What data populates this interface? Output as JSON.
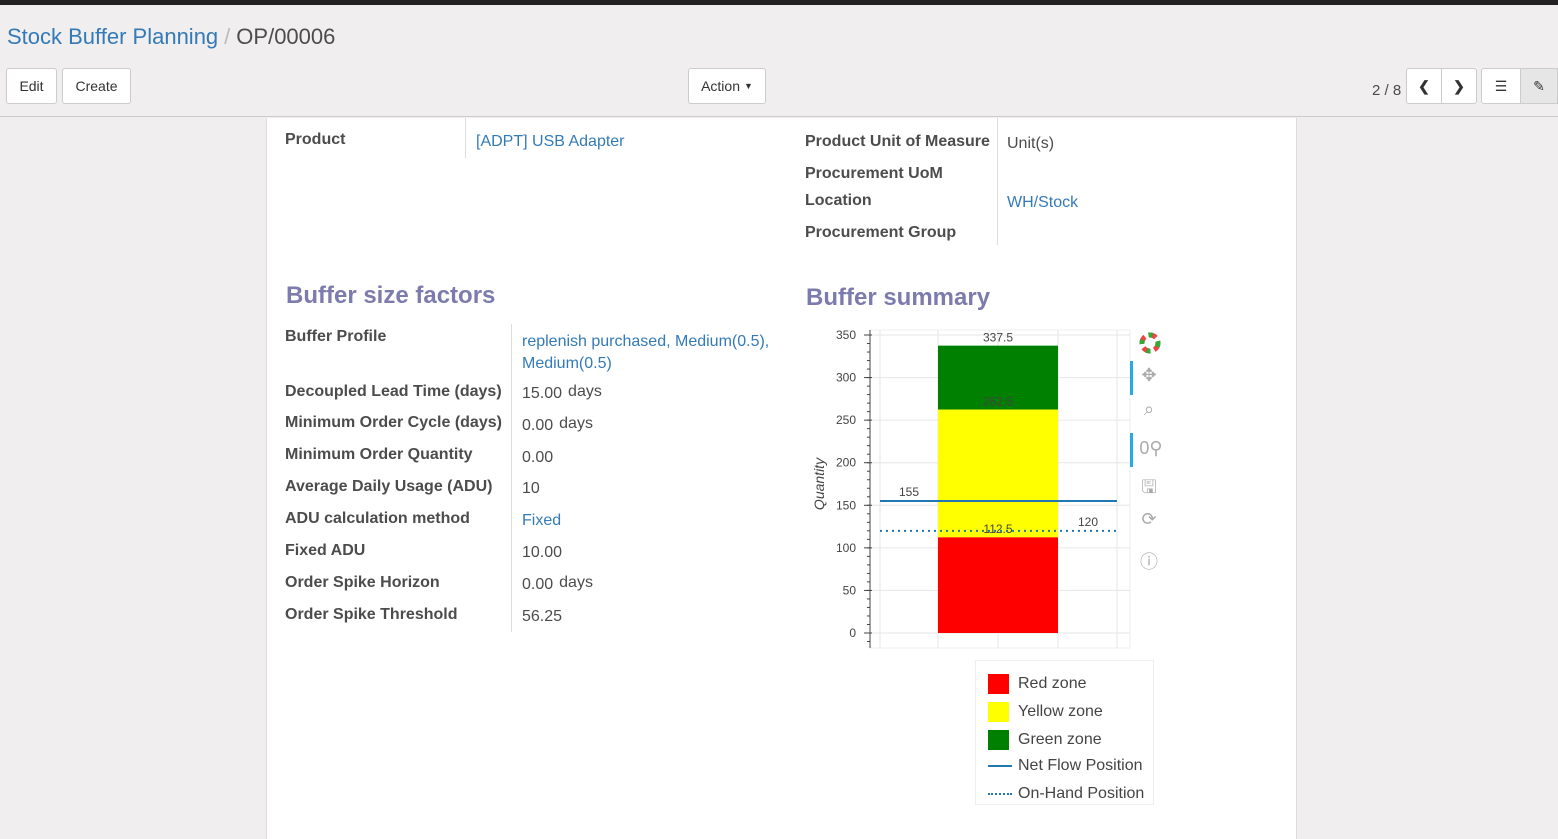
{
  "breadcrumb": {
    "parent": "Stock Buffer Planning",
    "current": "OP/00006"
  },
  "toolbar": {
    "edit": "Edit",
    "create": "Create",
    "action": "Action",
    "pager": "2 / 8"
  },
  "form": {
    "product_label": "Product",
    "product_value": "[ADPT] USB Adapter",
    "uom_label": "Product Unit of Measure",
    "uom_value": "Unit(s)",
    "proc_uom_label": "Procurement UoM",
    "location_label": "Location",
    "location_value": "WH/Stock",
    "proc_group_label": "Procurement Group"
  },
  "factors": {
    "title": "Buffer size factors",
    "rows": [
      {
        "label": "Buffer Profile",
        "value": "replenish purchased, Medium(0.5),",
        "value2": "Medium(0.5)"
      },
      {
        "label": "Decoupled Lead Time (days)",
        "value": "15.00",
        "unit": "days"
      },
      {
        "label": "Minimum Order Cycle (days)",
        "value": "0.00",
        "unit": "days"
      },
      {
        "label": "Minimum Order Quantity",
        "value": "0.00"
      },
      {
        "label": "Average Daily Usage (ADU)",
        "value": "10"
      },
      {
        "label": "ADU calculation method",
        "value": "Fixed"
      },
      {
        "label": "Fixed ADU",
        "value": "10.00"
      },
      {
        "label": "Order Spike Horizon",
        "value": "0.00",
        "unit": "days"
      },
      {
        "label": "Order Spike Threshold",
        "value": "56.25"
      }
    ]
  },
  "summary": {
    "title": "Buffer summary"
  },
  "chart_data": {
    "type": "bar",
    "stacked": true,
    "ylabel": "Quantity",
    "ylim": [
      -10,
      355
    ],
    "yticks": [
      0,
      50,
      100,
      150,
      200,
      250,
      300,
      350
    ],
    "grid": true,
    "legend_position": "bottom",
    "series": [
      {
        "name": "Red zone",
        "from": 0,
        "to": 112.5,
        "color": "#ff0000",
        "label": "112.5"
      },
      {
        "name": "Yellow zone",
        "from": 112.5,
        "to": 262.5,
        "color": "#ffff00",
        "label": "262.5"
      },
      {
        "name": "Green zone",
        "from": 262.5,
        "to": 337.5,
        "color": "#008000",
        "label": "337.5"
      }
    ],
    "lines": [
      {
        "name": "Net Flow Position",
        "value": 155,
        "label": "155",
        "style": "solid",
        "color": "#1f77b4"
      },
      {
        "name": "On-Hand Position",
        "value": 120,
        "label": "120",
        "style": "dotted",
        "color": "#1f77b4"
      }
    ]
  },
  "chart_tools": [
    "bokeh-logo-icon",
    "pan-icon",
    "box-zoom-icon",
    "wheel-zoom-icon",
    "save-icon",
    "reset-icon",
    "help-icon"
  ]
}
